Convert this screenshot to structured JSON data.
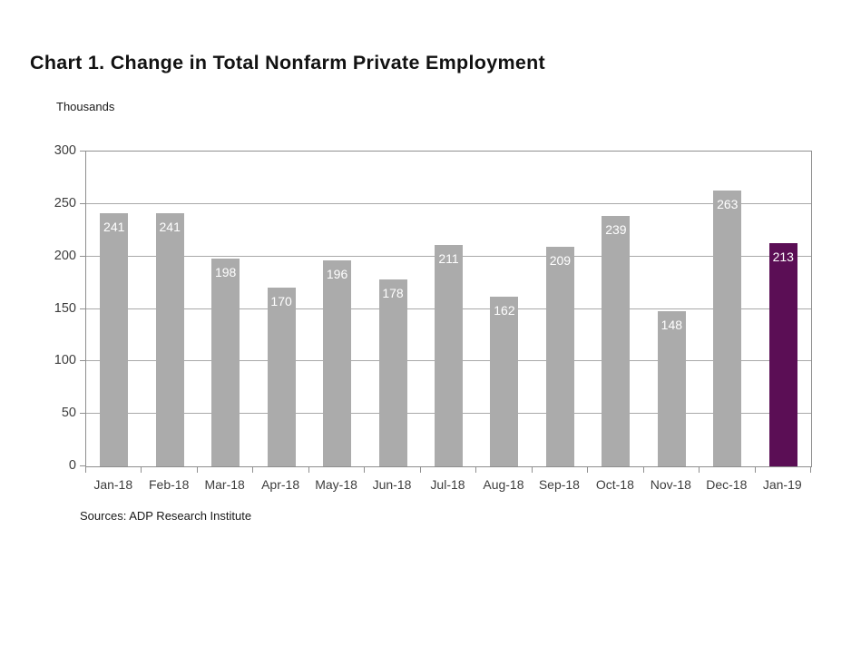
{
  "chart": {
    "title": "Chart 1. Change in Total Nonfarm Private Employment",
    "units_label": "Thousands",
    "source_note": "Sources: ADP Research Institute"
  },
  "chart_data": {
    "type": "bar",
    "title": "Chart 1. Change in Total Nonfarm Private Employment",
    "xlabel": "",
    "ylabel": "Thousands",
    "categories": [
      "Jan-18",
      "Feb-18",
      "Mar-18",
      "Apr-18",
      "May-18",
      "Jun-18",
      "Jul-18",
      "Aug-18",
      "Sep-18",
      "Oct-18",
      "Nov-18",
      "Dec-18",
      "Jan-19"
    ],
    "values": [
      241,
      241,
      198,
      170,
      196,
      178,
      211,
      162,
      209,
      239,
      148,
      263,
      213
    ],
    "ylim": [
      0,
      300
    ],
    "yticks": [
      0,
      50,
      100,
      150,
      200,
      250,
      300
    ],
    "grid": true,
    "legend": "none",
    "highlight_index": 12,
    "bar_color": "#ababab",
    "highlight_color": "#5b0e55",
    "value_label_color": "#ffffff",
    "gridline_color": "#a9a9a9",
    "axis_color": "#8f8f8f",
    "source": "Sources: ADP Research Institute"
  }
}
